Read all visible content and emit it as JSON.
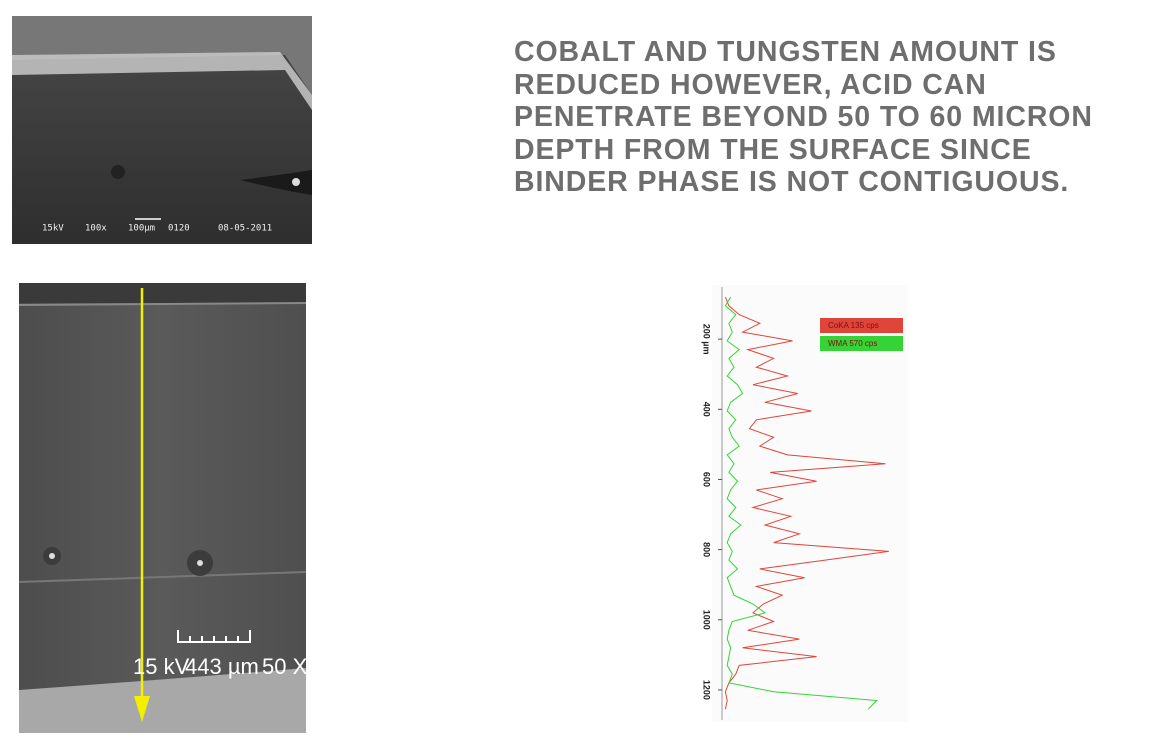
{
  "heading_lines": [
    "COBALT AND TUNGSTEN AMOUNT IS",
    "REDUCED HOWEVER, ACID CAN",
    "PENETRATE BEYOND 50 TO 60 MICRON",
    "DEPTH FROM THE SURFACE SINCE",
    "BINDER PHASE IS NOT CONTIGUOUS."
  ],
  "sem_top": {
    "labels": [
      "15kV",
      "100x",
      "100µm",
      "0120",
      "08-05-2011"
    ]
  },
  "sem_bottom": {
    "labels": [
      "15 kV",
      "443 µm",
      "50 X"
    ]
  },
  "chart_data": {
    "type": "line",
    "x": [
      80,
      105,
      130,
      155,
      180,
      205,
      230,
      255,
      280,
      305,
      330,
      355,
      380,
      405,
      430,
      455,
      480,
      505,
      530,
      555,
      580,
      605,
      630,
      655,
      680,
      705,
      730,
      755,
      780,
      805,
      830,
      855,
      880,
      905,
      930,
      955,
      980,
      1005,
      1030,
      1055,
      1080,
      1105,
      1130,
      1155,
      1180,
      1205,
      1230,
      1255
    ],
    "series": [
      {
        "name": "CoKA 135 cps",
        "color": "#e0453a",
        "values": [
          2,
          4,
          10,
          22,
          12,
          41,
          15,
          30,
          20,
          38,
          18,
          44,
          25,
          52,
          20,
          16,
          30,
          22,
          38,
          95,
          28,
          55,
          20,
          35,
          18,
          40,
          25,
          45,
          30,
          97,
          60,
          22,
          48,
          20,
          35,
          24,
          18,
          30,
          15,
          45,
          12,
          55,
          10,
          8,
          4,
          2,
          3,
          2
        ]
      },
      {
        "name": "WMA 570 cps",
        "color": "#35d335",
        "values": [
          5,
          2,
          8,
          4,
          6,
          3,
          10,
          4,
          7,
          3,
          9,
          12,
          5,
          3,
          8,
          4,
          6,
          10,
          3,
          7,
          4,
          9,
          5,
          3,
          8,
          4,
          11,
          5,
          3,
          6,
          4,
          9,
          3,
          5,
          7,
          18,
          25,
          6,
          4,
          3,
          5,
          4,
          3,
          6,
          4,
          30,
          90,
          85
        ]
      }
    ],
    "xlim": [
      60,
      1280
    ],
    "xticks": [
      {
        "value": 200,
        "label": "200 µm"
      },
      400,
      600,
      800,
      1000,
      1200
    ],
    "ylim": [
      0,
      100
    ],
    "legend": "upper right"
  }
}
